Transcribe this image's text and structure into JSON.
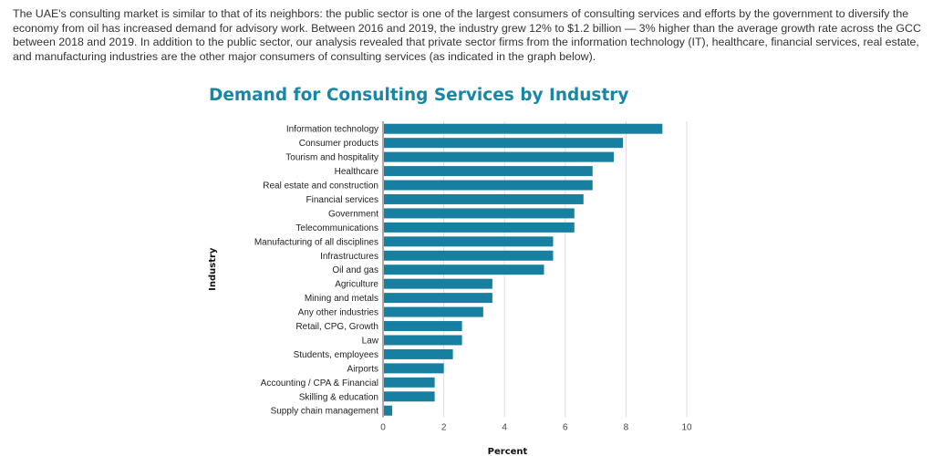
{
  "intro_text": "The UAE's consulting market is similar to that of its neighbors: the public sector is one of the largest consumers of consulting services and efforts by the government to diversify the economy from oil has increased demand for advisory work. Between 2016 and 2019, the industry grew 12% to $1.2 billion — 3% higher than the average growth rate across the GCC between 2018 and 2019. In addition to the public sector, our analysis revealed that private sector firms from the information technology (IT), healthcare, financial services, real estate, and manufacturing industries are the other major consumers of consulting services (as indicated in the graph below).",
  "chart_data": {
    "type": "bar",
    "orientation": "horizontal",
    "title": "Demand for Consulting Services by Industry",
    "xlabel": "Percent",
    "ylabel": "Industry",
    "xlim": [
      0,
      10
    ],
    "xticks": [
      "0",
      "2",
      "4",
      "6",
      "8",
      "10"
    ],
    "grid": true,
    "bar_color": "#177fa0",
    "title_color": "#1a86a6",
    "categories": [
      "Information technology",
      "Consumer products",
      "Tourism and hospitality",
      "Healthcare",
      "Real estate and construction",
      "Financial services",
      "Government",
      "Telecommunications",
      "Manufacturing of all disciplines",
      "Infrastructures",
      "Oil and gas",
      "Agriculture",
      "Mining and metals",
      "Any other industries",
      "Retail, CPG, Growth",
      "Law",
      "Students, employees",
      "Airports",
      "Accounting / CPA & Financial",
      "Skilling & education",
      "Supply chain management"
    ],
    "values": [
      9.2,
      7.9,
      7.6,
      6.9,
      6.9,
      6.6,
      6.3,
      6.3,
      5.6,
      5.6,
      5.3,
      3.6,
      3.6,
      3.3,
      2.6,
      2.6,
      2.3,
      2.0,
      1.7,
      1.7,
      0.3
    ]
  }
}
